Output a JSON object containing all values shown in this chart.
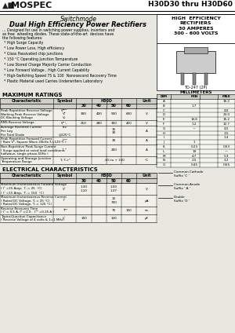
{
  "bg_color": "#e8e8e0",
  "text_color": "#111111",
  "title_mospec": "MOSPEC",
  "title_part": "H30D30 thru H30D60",
  "subtitle1": "Switchmode",
  "subtitle2": "Dual High Efficiency Power Rectifiers",
  "desc_line1": "... Designed for use in switching power supplies, inverters and",
  "desc_line2": "as free  wheeling diodes. These state-of-the-art  devices have",
  "desc_line3": "the following features:",
  "features": [
    "* High Surge Capacity",
    "* Low Power Loss, High efficiency",
    "* Glass Passivated chip junctions",
    "* 150 °C Operating Junction Temperature",
    "* Low Stored Charge Majority Carrier Conduction",
    "* Low Forward Voltage , High Current Capability",
    "* High-Switching Speed 75 & 100  Nanosecond Recovery Time",
    "* Plastic Material used Carries Underwriters Laboratory"
  ],
  "right_box1_lines": [
    "HIGH  EFFICIENCY",
    "RECTIFIERS",
    "",
    "30 AMPERES",
    "300 - 600 VOLTS"
  ],
  "package_label": "TO-247 (2P)",
  "dim_header": "MILLIMETERS",
  "dim_cols_header": [
    "DIM",
    "MIN",
    "MAX"
  ],
  "dim_rows": [
    [
      "A",
      "",
      "16.2"
    ],
    [
      "B",
      "1.7",
      ""
    ],
    [
      "C",
      "",
      "4.0"
    ],
    [
      "D",
      "",
      "23.0"
    ],
    [
      "E",
      "14.8",
      "15.2"
    ],
    [
      "F",
      "1.2",
      "12.7"
    ],
    [
      "G",
      "—",
      "4.5"
    ],
    [
      "H",
      "",
      "3.5"
    ],
    [
      "I",
      "",
      "1.4"
    ],
    [
      "J",
      "1",
      ""
    ],
    [
      "K",
      "0.23",
      "0.63"
    ],
    [
      "L",
      "19",
      "—"
    ],
    [
      "M",
      "4.7",
      "5.3"
    ],
    [
      "N",
      "2.5",
      "3.2"
    ],
    [
      "O",
      "0.45",
      "0.65"
    ]
  ],
  "suffix_lines": [
    [
      "Common Cathode",
      "Suffix ‘C ’"
    ],
    [
      "Common Anode",
      "Suffix ‘ A ’"
    ],
    [
      "Double",
      "Suffix ‘D ’"
    ]
  ],
  "max_ratings_title": "MAXIMUM RATINGS",
  "elec_char_title": "ELECTRICAL CHARACTERISTICS",
  "table_bg": "#d0d0c8",
  "table_white": "#f0f0e8",
  "col_subheaders": [
    "30",
    "40",
    "50",
    "60"
  ],
  "mr_rows": [
    {
      "char": [
        "Peak Repetitive Reverse Voltage",
        "Working Peak Reverse Voltage",
        "DC Blocking Voltage"
      ],
      "sym": [
        "Vᴿᴿᴹ",
        "Vᴿ",
        "Vₙ"
      ],
      "v30": "300",
      "v40": "400",
      "v50": "500",
      "v60": "600",
      "unit": "V"
    },
    {
      "char": [
        "RMS Reverse Voltage"
      ],
      "sym": [
        "Vᴿᴹₛ"
      ],
      "v30": "210",
      "v40": "280",
      "v50": "350",
      "v60": "420",
      "unit": "V"
    },
    {
      "char": [
        "Average Rectified Current",
        "Per Leg",
        "Per Total Diode"
      ],
      "sym": [
        "Iᴀᴠ",
        "",
        "@125°C"
      ],
      "v30": "",
      "v40": "",
      "v50": "15\n30",
      "v60": "",
      "unit": "A"
    },
    {
      "char": [
        "Peak Repetitive Forward Current",
        "( Rate Vᴿ, Square Wave 20kHz,Tⱼ=125°C )"
      ],
      "sym": [
        "Iᴬᴿᴹ"
      ],
      "v30": "",
      "v40": "",
      "v50": "30",
      "v60": "",
      "unit": "A"
    },
    {
      "char": [
        "Non-Repetitive Peak Surge Current",
        "( Surge applied at rated load conditions,",
        "halfwave, single phase,50Hz )"
      ],
      "sym": [
        "Iᶠₛᴹ"
      ],
      "v30": "",
      "v40": "",
      "v50": "200",
      "v60": "",
      "unit": "A"
    },
    {
      "char": [
        "Operating and Storage Junction",
        "Temperature Range"
      ],
      "sym": [
        "Tⱼ, Tₛᴛᴳ"
      ],
      "v30": "",
      "v40": "",
      "v50": "-65 to + 150",
      "v60": "",
      "unit": "°C"
    }
  ],
  "ec_rows": [
    {
      "char": [
        "Maximum Instantaneous Forward Voltage",
        "( Iᴬ =15 Amp,  Tⱼ = 25  °C)",
        "( Iᴬ =15 Amp,  Tⱼ = 150  °C)"
      ],
      "sym": [
        "Vᴬ"
      ],
      "v30": "1.30\n1.10",
      "v40": "",
      "v50": "1.50\n1.37",
      "v60": "",
      "unit": "V"
    },
    {
      "char": [
        "Maximum Instantaneous Reverse Current",
        "( Rated DC Voltage, Tⱼ = 25 °C)",
        "( Rated DC Voltage, Tⱼ = 125 °C)"
      ],
      "sym": [
        "Iᴿ"
      ],
      "v30": "",
      "v40": "",
      "v50": "10\n700",
      "v60": "",
      "unit": "μA"
    },
    {
      "char": [
        "Reverse Recovery Time",
        "( Iᴬ = 0.5 A, Iᴿ =1.0 ,  Iᴿᴿ =0.25 A )"
      ],
      "sym": [
        "Tᴿᴿ"
      ],
      "v30": "",
      "v40": "",
      "v50": "75",
      "v60": "100",
      "unit": "ns"
    },
    {
      "char": [
        "Typical Junction Capacitance",
        "( Reverse Voltage of 4 volts & 1=1 MHz)"
      ],
      "sym": [
        "Cᴬ"
      ],
      "v30": "150",
      "v40": "",
      "v50": "120",
      "v60": "",
      "unit": "pF"
    }
  ]
}
